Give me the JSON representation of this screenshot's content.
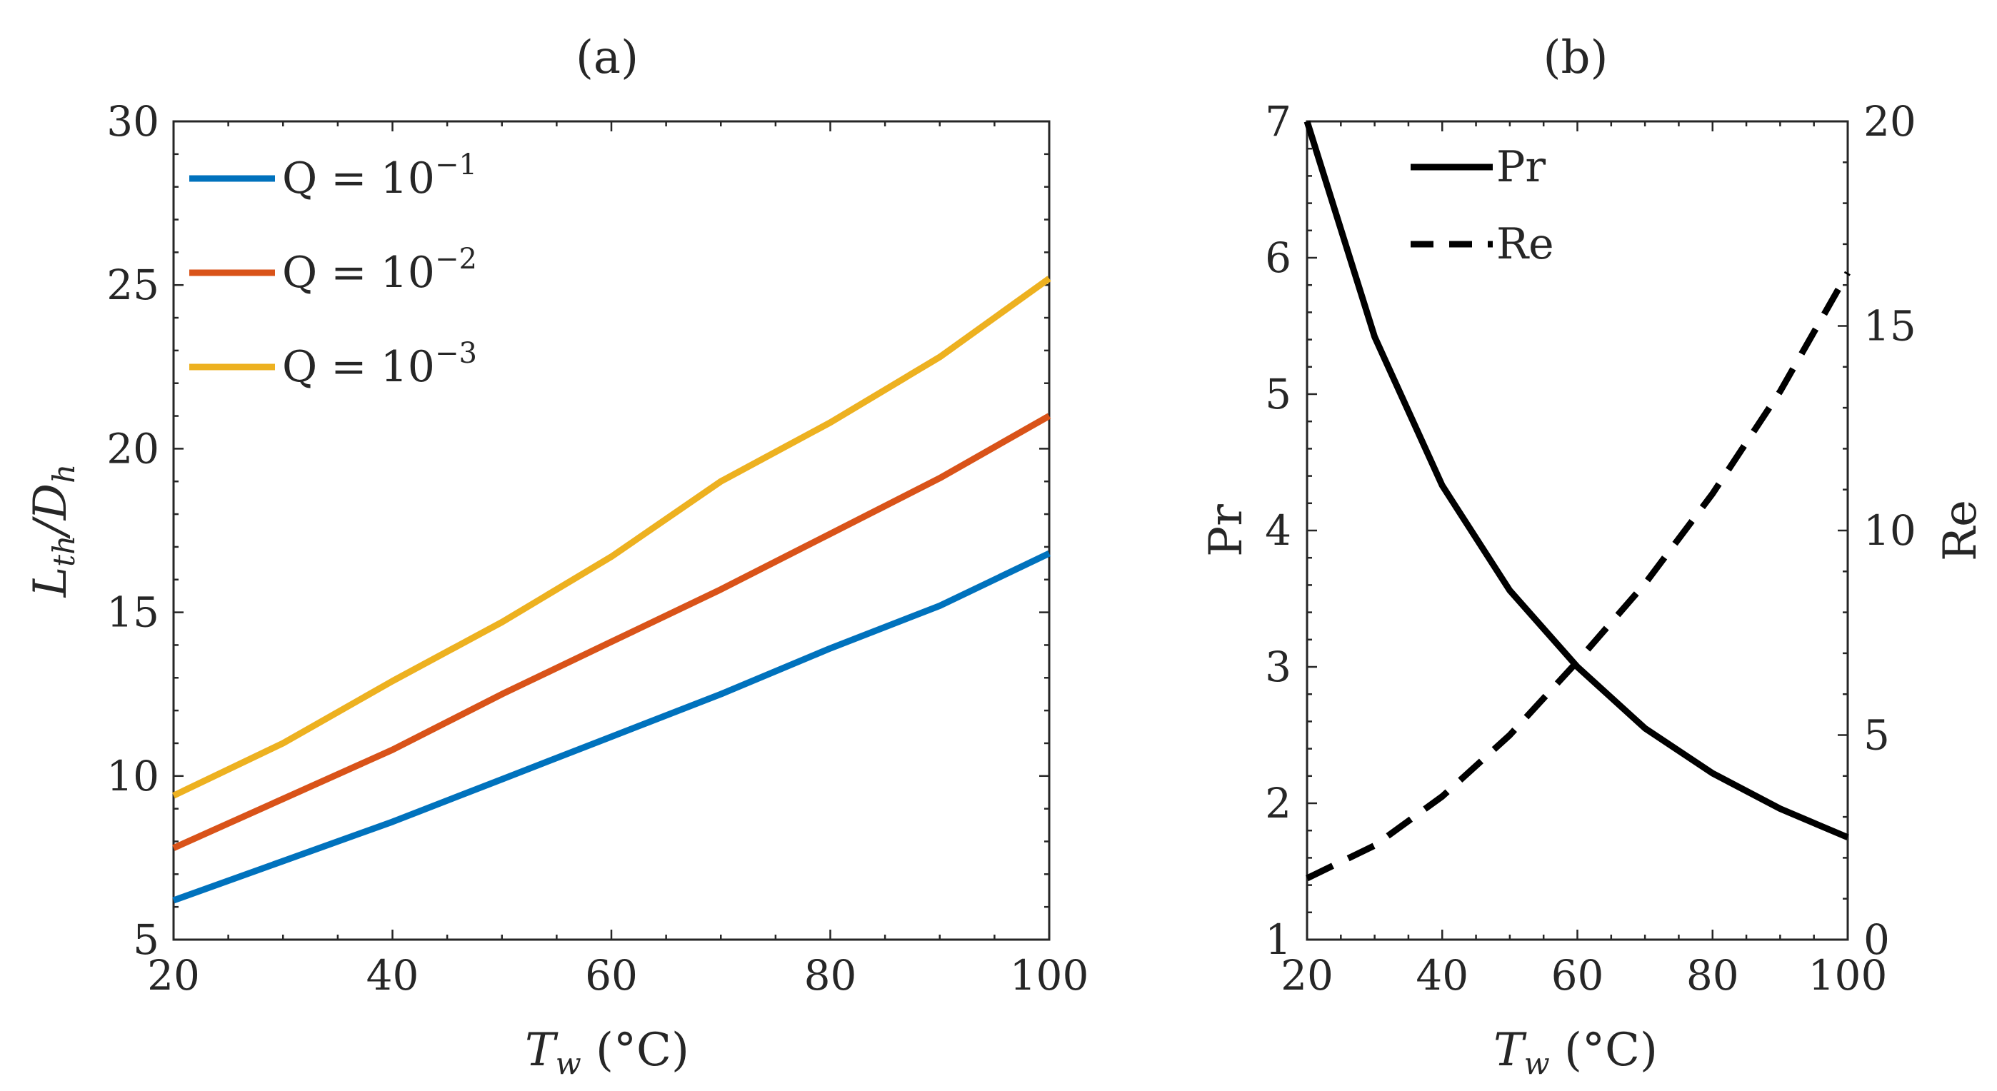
{
  "chart_data": [
    {
      "type": "line",
      "title": "(a)",
      "xlabel": "T_w (°C)",
      "ylabel": "L_th/D_h",
      "xlim": [
        20,
        100
      ],
      "ylim": [
        5,
        30
      ],
      "xticks": [
        20,
        40,
        60,
        80,
        100
      ],
      "yticks": [
        5,
        10,
        15,
        20,
        25,
        30
      ],
      "legend_position": "top-left",
      "x": [
        20,
        30,
        40,
        50,
        60,
        70,
        80,
        90,
        100
      ],
      "series": [
        {
          "name": "Q = 10^-1",
          "base": "Q = 10",
          "exp": "−1",
          "color": "#0072BD",
          "values": [
            6.2,
            7.4,
            8.6,
            9.9,
            11.2,
            12.5,
            13.9,
            15.2,
            16.8
          ]
        },
        {
          "name": "Q = 10^-2",
          "base": "Q = 10",
          "exp": "−2",
          "color": "#D95319",
          "values": [
            7.8,
            9.3,
            10.8,
            12.5,
            14.1,
            15.7,
            17.4,
            19.1,
            21.0
          ]
        },
        {
          "name": "Q = 10^-3",
          "base": "Q = 10",
          "exp": "−3",
          "color": "#EDB120",
          "values": [
            9.4,
            11.0,
            12.9,
            14.7,
            16.7,
            19.0,
            20.8,
            22.8,
            25.2
          ]
        }
      ]
    },
    {
      "type": "line",
      "title": "(b)",
      "xlabel": "T_w (°C)",
      "ylabel_left": "Pr",
      "ylabel_right": "Re",
      "xlim": [
        20,
        100
      ],
      "ylim_left": [
        1,
        7
      ],
      "ylim_right": [
        0,
        20
      ],
      "xticks": [
        20,
        40,
        60,
        80,
        100
      ],
      "yticks_left": [
        1,
        2,
        3,
        4,
        5,
        6,
        7
      ],
      "yticks_right": [
        0,
        5,
        10,
        15,
        20
      ],
      "legend_position": "top-center",
      "x": [
        20,
        30,
        40,
        50,
        60,
        70,
        80,
        90,
        100
      ],
      "series": [
        {
          "name": "Pr",
          "axis": "left",
          "style": "solid",
          "color": "#000000",
          "values": [
            7.0,
            5.42,
            4.33,
            3.56,
            3.0,
            2.55,
            2.22,
            1.96,
            1.75
          ]
        },
        {
          "name": "Re",
          "axis": "right",
          "style": "dashed",
          "color": "#000000",
          "values": [
            1.5,
            2.3,
            3.5,
            5.0,
            6.8,
            8.7,
            10.9,
            13.4,
            16.3
          ]
        }
      ]
    }
  ]
}
